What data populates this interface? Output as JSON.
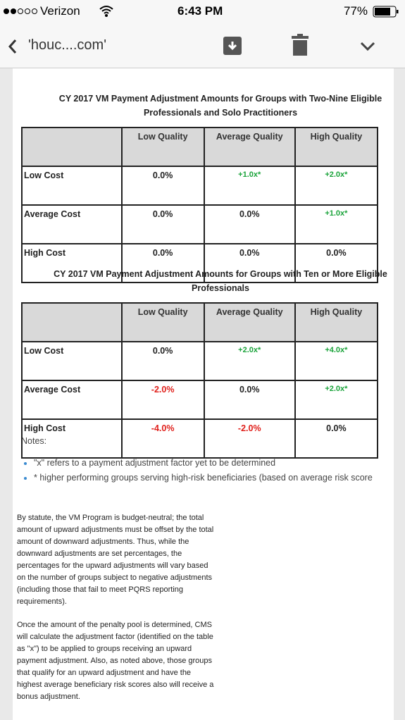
{
  "status_bar": {
    "carrier": "Verizon",
    "time": "6:43 PM",
    "battery": "77%"
  },
  "toolbar": {
    "sender": "'houc....com'"
  },
  "tables": [
    {
      "title": "CY 2017 VM Payment Adjustment Amounts for Groups with Two-Nine Eligible Professionals and Solo Practitioners",
      "columns": [
        "Low Quality",
        "Average Quality",
        "High Quality"
      ],
      "rows": [
        {
          "label": "Low Cost",
          "cells": [
            "0.0%",
            "+1.0x*",
            "+2.0x*"
          ]
        },
        {
          "label": "Average Cost",
          "cells": [
            "0.0%",
            "0.0%",
            "+1.0x*"
          ]
        },
        {
          "label": "High Cost",
          "cells": [
            "0.0%",
            "0.0%",
            "0.0%"
          ]
        }
      ]
    },
    {
      "title": "CY 2017 VM Payment Adjustment Amounts for Groups with Ten or More Eligible Professionals",
      "columns": [
        "Low Quality",
        "Average Quality",
        "High Quality"
      ],
      "rows": [
        {
          "label": "Low Cost",
          "cells": [
            "0.0%",
            "+2.0x*",
            "+4.0x*"
          ]
        },
        {
          "label": "Average Cost",
          "cells": [
            "-2.0%",
            "0.0%",
            "+2.0x*"
          ]
        },
        {
          "label": "High Cost",
          "cells": [
            "-4.0%",
            "-2.0%",
            "0.0%"
          ]
        }
      ]
    }
  ],
  "notes": {
    "label": "Notes:",
    "items": [
      "\"x\" refers to a payment adjustment factor yet to be determined",
      "* higher performing groups serving high-risk beneficiaries (based on average risk score"
    ]
  },
  "paragraphs": [
    "By statute, the VM Program is budget-neutral; the total amount of upward adjustments must be offset by the total amount of downward adjustments. Thus, while the downward adjustments are set percentages, the percentages for the upward adjustments will vary based on the number of groups subject to negative adjustments (including those that fail to meet PQRS reporting requirements).",
    "Once the amount of the penalty pool is determined, CMS will calculate the adjustment factor (identified on the table as \"x\") to be applied to groups receiving an upward payment adjustment. Also, as noted above, those groups that qualify for an upward adjustment and have the highest average beneficiary risk scores also will receive a bonus adjustment."
  ]
}
